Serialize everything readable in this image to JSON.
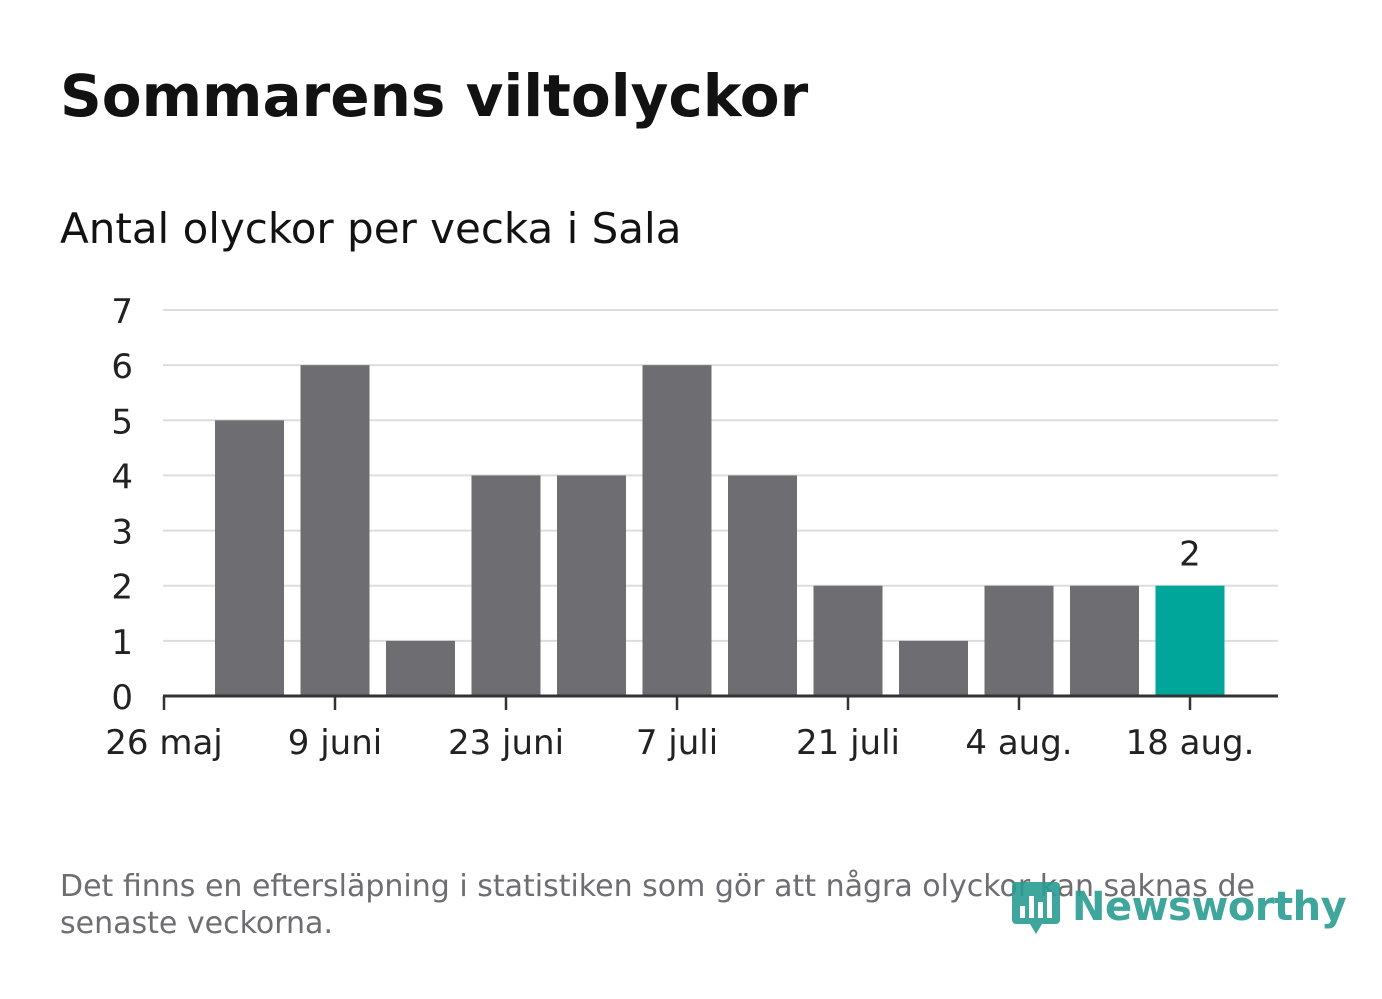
{
  "title": "Sommarens viltolyckor",
  "subtitle": "Antal olyckor per vecka i Sala",
  "footnote": "Det finns en eftersläpning i statistiken som gör att några olyckor kan saknas de senaste veckorna.",
  "logo": {
    "text": "Newsworthy",
    "icon": "newsworthy-chart-bubble-icon"
  },
  "colors": {
    "bar": "#6e6d72",
    "highlight": "#00a699",
    "grid": "#dddddd",
    "axis": "#333333",
    "text": "#222222"
  },
  "chart_data": {
    "type": "bar",
    "xticks": [
      "26 maj",
      "9 juni",
      "23 juni",
      "7 juli",
      "21 juli",
      "4 aug.",
      "18 aug."
    ],
    "values": [
      5,
      6,
      1,
      4,
      4,
      6,
      4,
      2,
      1,
      2,
      2,
      2
    ],
    "highlight_index": 11,
    "highlight_label": "2",
    "yticks": [
      "0",
      "1",
      "2",
      "3",
      "4",
      "5",
      "6",
      "7"
    ],
    "ylim": [
      0,
      7
    ],
    "grid": true
  }
}
